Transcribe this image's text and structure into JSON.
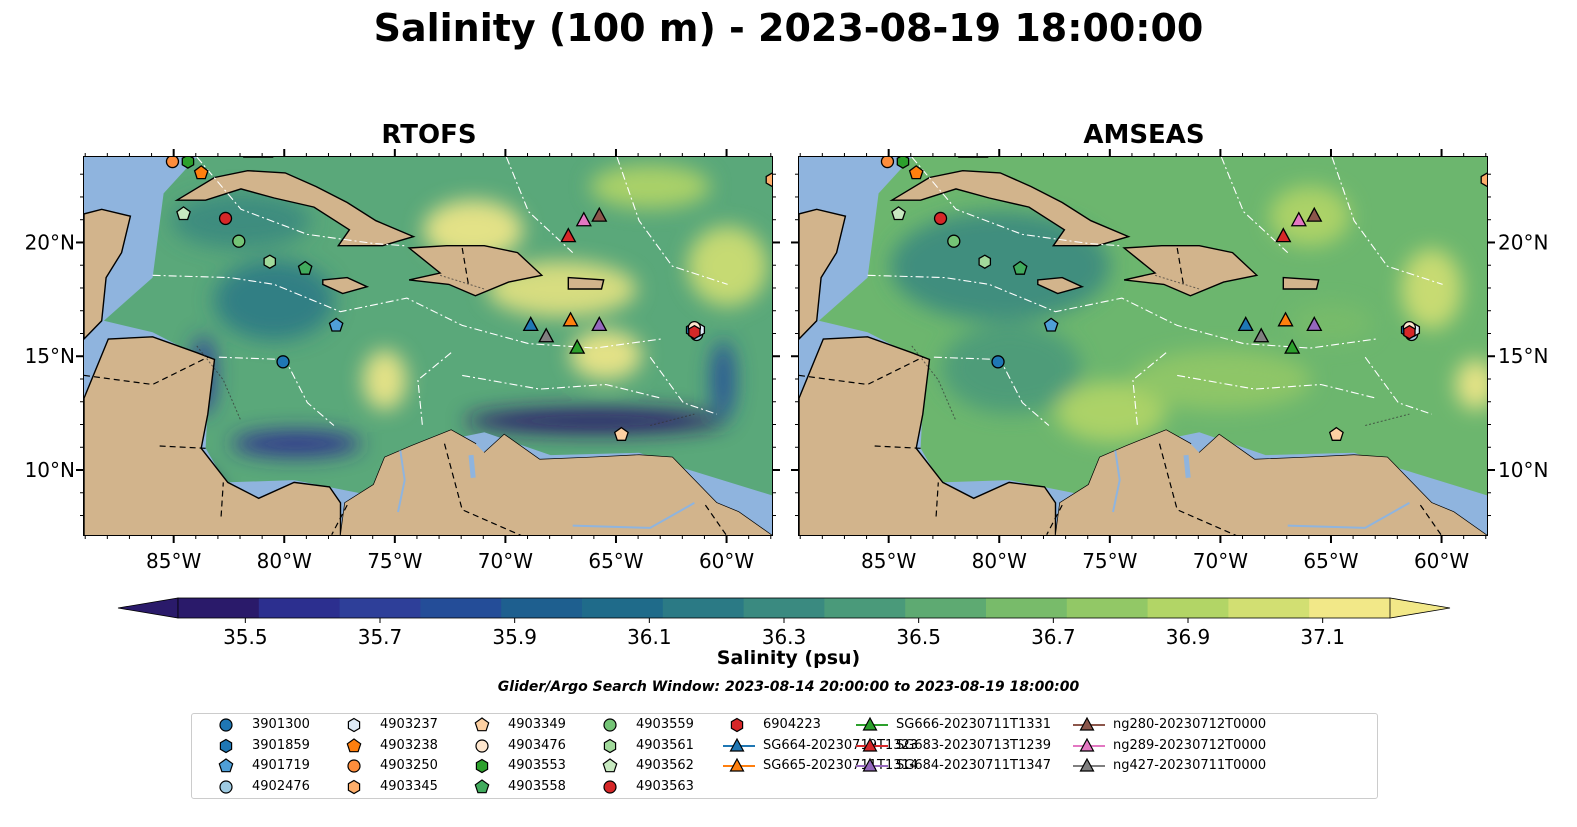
{
  "title": "Salinity (100 m) - 2023-08-19 18:00:00",
  "panels": [
    {
      "title": "RTOFS",
      "scheme": "rtofs"
    },
    {
      "title": "AMSEAS",
      "scheme": "amseas"
    }
  ],
  "lon_ticks": [
    "85°W",
    "80°W",
    "75°W",
    "70°W",
    "65°W",
    "60°W"
  ],
  "lat_ticks": [
    "20°N",
    "15°N",
    "10°N"
  ],
  "colorbar": {
    "label": "Salinity (psu)",
    "ticks": [
      "35.5",
      "35.7",
      "35.9",
      "36.1",
      "36.3",
      "36.5",
      "36.7",
      "36.9",
      "37.1"
    ],
    "min": 35.4,
    "max": 37.2,
    "colors": [
      "#2a1a6a",
      "#2c2f8f",
      "#2e3f99",
      "#244d98",
      "#1e5f8f",
      "#1f6b8a",
      "#2b7a85",
      "#3a8a80",
      "#4a9a7a",
      "#5eaa72",
      "#78bb6a",
      "#92c866",
      "#b2d566",
      "#d2df72",
      "#f2e888"
    ]
  },
  "search_window": "Glider/Argo Search Window: 2023-08-14 20:00:00 to 2023-08-19 18:00:00",
  "land_color": "#d2b48c",
  "ocean_color": "#8fb4de",
  "markers": [
    {
      "label": "3901300",
      "shape": "circle",
      "color": "#1f77b4",
      "lon": -80.1,
      "lat": 14.8
    },
    {
      "label": "3901859",
      "shape": "hexagon",
      "color": "#1f77b4",
      "lon": -61.6,
      "lat": 16.2
    },
    {
      "label": "4901719",
      "shape": "pentagon",
      "color": "#4f9fd8",
      "lon": -77.7,
      "lat": 16.4
    },
    {
      "label": "4902476",
      "shape": "circle",
      "color": "#9ecae1",
      "lon": -61.4,
      "lat": 16.0
    },
    {
      "label": "4903237",
      "shape": "hexagon",
      "color": "#deebf7",
      "lon": -61.3,
      "lat": 16.2
    },
    {
      "label": "4903238",
      "shape": "pentagon",
      "color": "#ff7f0e",
      "lon": -83.8,
      "lat": 23.1
    },
    {
      "label": "4903250",
      "shape": "circle",
      "color": "#fd8d3c",
      "lon": -85.1,
      "lat": 23.6
    },
    {
      "label": "4903345",
      "shape": "hexagon",
      "color": "#fdae6b",
      "lon": -58.0,
      "lat": 22.8
    },
    {
      "label": "4903349",
      "shape": "pentagon",
      "color": "#fdd0a2",
      "lon": -64.8,
      "lat": 11.6
    },
    {
      "label": "4903476",
      "shape": "circle",
      "color": "#fee6ce",
      "lon": -61.5,
      "lat": 16.3
    },
    {
      "label": "4903553",
      "shape": "hexagon",
      "color": "#2ca02c",
      "lon": -84.4,
      "lat": 23.6
    },
    {
      "label": "4903558",
      "shape": "pentagon",
      "color": "#41ab5d",
      "lon": -79.1,
      "lat": 18.9
    },
    {
      "label": "4903559",
      "shape": "circle",
      "color": "#74c476",
      "lon": -82.1,
      "lat": 20.1
    },
    {
      "label": "4903561",
      "shape": "hexagon",
      "color": "#a1d99b",
      "lon": -80.7,
      "lat": 19.2
    },
    {
      "label": "4903562",
      "shape": "pentagon",
      "color": "#c7e9c0",
      "lon": -84.6,
      "lat": 21.3
    },
    {
      "label": "4903563",
      "shape": "circle",
      "color": "#d62728",
      "lon": -82.7,
      "lat": 21.1
    },
    {
      "label": "6904223",
      "shape": "hexagon",
      "color": "#d62728",
      "lon": -61.5,
      "lat": 16.1
    },
    {
      "label": "SG664-20230719T1323",
      "shape": "triangle",
      "color": "#1f77b4",
      "lon": -68.9,
      "lat": 16.4
    },
    {
      "label": "SG665-20230711T1314",
      "shape": "triangle",
      "color": "#ff7f0e",
      "lon": -67.1,
      "lat": 16.6
    },
    {
      "label": "SG666-20230711T1331",
      "shape": "triangle",
      "color": "#2ca02c",
      "lon": -66.8,
      "lat": 15.4
    },
    {
      "label": "SG683-20230713T1239",
      "shape": "triangle",
      "color": "#d62728",
      "lon": -67.2,
      "lat": 20.3
    },
    {
      "label": "SG684-20230711T1347",
      "shape": "triangle",
      "color": "#9467bd",
      "lon": -65.8,
      "lat": 16.4
    },
    {
      "label": "ng280-20230712T0000",
      "shape": "triangle",
      "color": "#8c564b",
      "lon": -65.8,
      "lat": 21.2
    },
    {
      "label": "ng289-20230712T0000",
      "shape": "triangle",
      "color": "#e377c2",
      "lon": -66.5,
      "lat": 21.0
    },
    {
      "label": "ng427-20230711T0000",
      "shape": "triangle",
      "color": "#7f7f7f",
      "lon": -68.2,
      "lat": 15.9
    }
  ]
}
